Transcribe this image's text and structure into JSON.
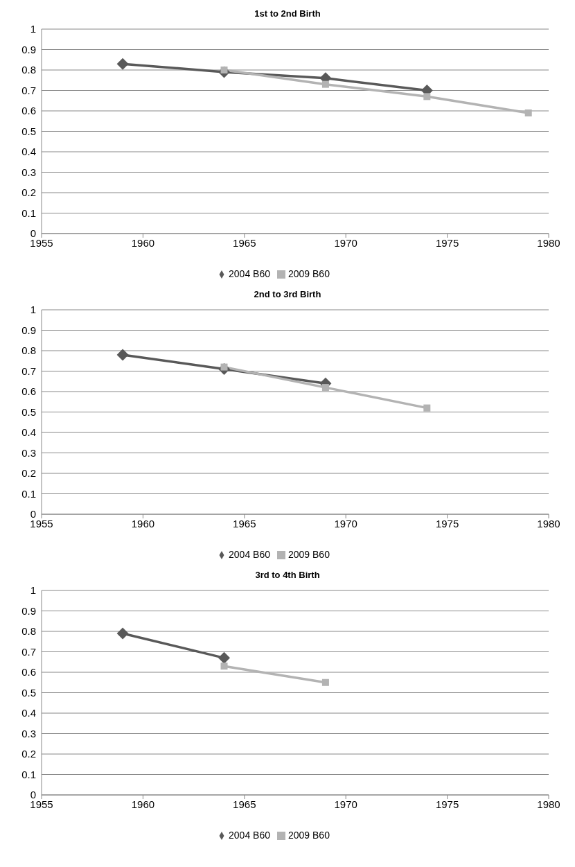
{
  "chart_data": [
    {
      "type": "line",
      "title": "1st to 2nd Birth",
      "xlim": [
        1955,
        1980
      ],
      "xticks": [
        1955,
        1960,
        1965,
        1970,
        1975,
        1980
      ],
      "ylim": [
        0,
        1
      ],
      "yticks": [
        0,
        0.1,
        0.2,
        0.3,
        0.4,
        0.5,
        0.6,
        0.7,
        0.8,
        0.9,
        1
      ],
      "grid": "y",
      "legend": "bottom",
      "series": [
        {
          "name": "2004 B60",
          "color": "#595959",
          "marker": "diamond",
          "x": [
            1959,
            1964,
            1969,
            1974
          ],
          "values": [
            0.83,
            0.79,
            0.76,
            0.7
          ]
        },
        {
          "name": "2009 B60",
          "color": "#b3b3b3",
          "marker": "square",
          "x": [
            1964,
            1969,
            1974,
            1979
          ],
          "values": [
            0.8,
            0.73,
            0.67,
            0.59
          ]
        }
      ]
    },
    {
      "type": "line",
      "title": "2nd to 3rd Birth",
      "xlim": [
        1955,
        1980
      ],
      "xticks": [
        1955,
        1960,
        1965,
        1970,
        1975,
        1980
      ],
      "ylim": [
        0,
        1
      ],
      "yticks": [
        0,
        0.1,
        0.2,
        0.3,
        0.4,
        0.5,
        0.6,
        0.7,
        0.8,
        0.9,
        1
      ],
      "grid": "y",
      "legend": "bottom",
      "series": [
        {
          "name": "2004 B60",
          "color": "#595959",
          "marker": "diamond",
          "x": [
            1959,
            1964,
            1969
          ],
          "values": [
            0.78,
            0.71,
            0.64
          ]
        },
        {
          "name": "2009 B60",
          "color": "#b3b3b3",
          "marker": "square",
          "x": [
            1964,
            1969,
            1974
          ],
          "values": [
            0.72,
            0.62,
            0.52
          ]
        }
      ]
    },
    {
      "type": "line",
      "title": "3rd to 4th Birth",
      "xlim": [
        1955,
        1980
      ],
      "xticks": [
        1955,
        1960,
        1965,
        1970,
        1975,
        1980
      ],
      "ylim": [
        0,
        1
      ],
      "yticks": [
        0,
        0.1,
        0.2,
        0.3,
        0.4,
        0.5,
        0.6,
        0.7,
        0.8,
        0.9,
        1
      ],
      "grid": "y",
      "legend": "bottom",
      "series": [
        {
          "name": "2004 B60",
          "color": "#595959",
          "marker": "diamond",
          "x": [
            1959,
            1964
          ],
          "values": [
            0.79,
            0.67
          ]
        },
        {
          "name": "2009 B60",
          "color": "#b3b3b3",
          "marker": "square",
          "x": [
            1964,
            1969
          ],
          "values": [
            0.63,
            0.55
          ]
        }
      ]
    }
  ]
}
